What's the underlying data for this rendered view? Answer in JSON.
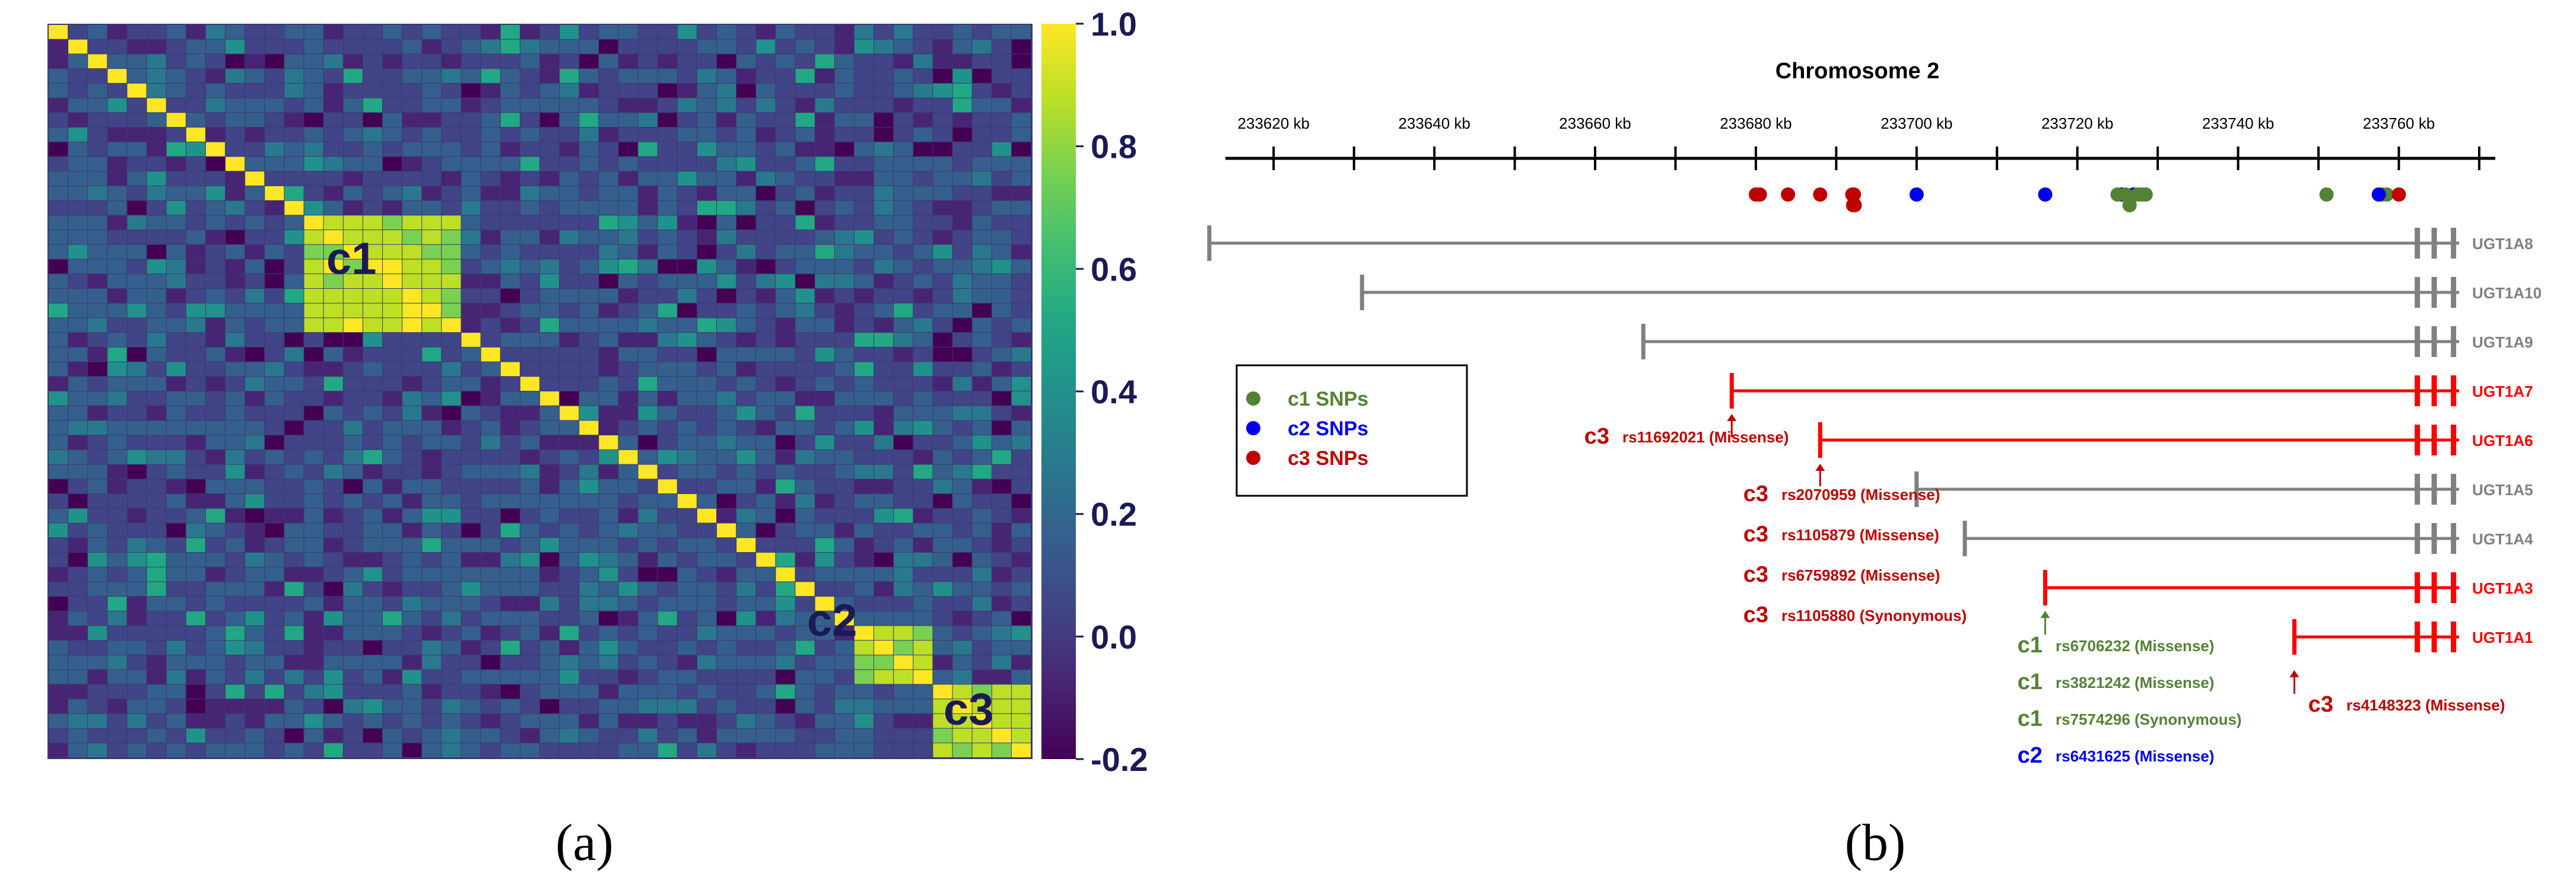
{
  "panel_a": {
    "label": "(a)",
    "cluster_labels": [
      "c1",
      "c2",
      "c3"
    ],
    "colorbar": {
      "ticks": [
        "1.0",
        "0.8",
        "0.6",
        "0.4",
        "0.2",
        "0.0",
        "-0.2"
      ],
      "min": -0.2,
      "max": 1.0,
      "colors": [
        "#440154",
        "#482475",
        "#414487",
        "#355f8d",
        "#2a788e",
        "#21918c",
        "#22a884",
        "#44bf70",
        "#7ad151",
        "#bddf26",
        "#fde725"
      ]
    },
    "matrix_size": 50,
    "background_r": 0.1,
    "blocks": [
      {
        "cluster": "c1",
        "from": 13,
        "to": 20,
        "r": 0.95
      },
      {
        "cluster": "c2",
        "from": 41,
        "to": 44,
        "r": 0.9
      },
      {
        "cluster": "c3",
        "from": 45,
        "to": 49,
        "r": 0.93
      }
    ]
  },
  "panel_b": {
    "label": "(b)",
    "title": "Chromosome 2",
    "axis": {
      "unit": "kb",
      "ticks": [
        "233620 kb",
        "233640 kb",
        "233660 kb",
        "233680 kb",
        "233700 kb",
        "233720 kb",
        "233740 kb",
        "233760 kb"
      ],
      "tick_values": [
        233620,
        233640,
        233660,
        233680,
        233700,
        233720,
        233740,
        233760
      ],
      "range": [
        233614,
        233772
      ]
    },
    "legend": [
      {
        "label": "c1 SNPs",
        "color": "#548235"
      },
      {
        "label": "c2 SNPs",
        "color": "#0000ee"
      },
      {
        "label": "c3 SNPs",
        "color": "#c00000"
      }
    ],
    "genes": [
      {
        "name": "UGT1A8",
        "start": 233612,
        "highlight": false
      },
      {
        "name": "UGT1A10",
        "start": 233631,
        "highlight": false
      },
      {
        "name": "UGT1A9",
        "start": 233666,
        "highlight": false
      },
      {
        "name": "UGT1A7",
        "start": 233677,
        "highlight": true
      },
      {
        "name": "UGT1A6",
        "start": 233688,
        "highlight": true
      },
      {
        "name": "UGT1A5",
        "start": 233700,
        "highlight": false
      },
      {
        "name": "UGT1A4",
        "start": 233706,
        "highlight": false
      },
      {
        "name": "UGT1A3",
        "start": 233716,
        "highlight": true
      },
      {
        "name": "UGT1A1",
        "start": 233747,
        "highlight": true
      }
    ],
    "snp_groups": [
      {
        "items": [
          {
            "cluster": "c3",
            "id": "rs11692021 (Missense)"
          }
        ]
      },
      {
        "items": [
          {
            "cluster": "c3",
            "id": "rs2070959 (Missense)"
          },
          {
            "cluster": "c3",
            "id": "rs1105879 (Missense)"
          },
          {
            "cluster": "c3",
            "id": "rs6759892 (Missense)"
          },
          {
            "cluster": "c3",
            "id": "rs1105880 (Synonymous)"
          }
        ]
      },
      {
        "items": [
          {
            "cluster": "c1",
            "id": "rs6706232 (Missense)"
          },
          {
            "cluster": "c1",
            "id": "rs3821242 (Missense)"
          },
          {
            "cluster": "c1",
            "id": "rs7574296 (Synonymous)"
          },
          {
            "cluster": "c2",
            "id": "rs6431625 (Missense)"
          }
        ]
      },
      {
        "items": [
          {
            "cluster": "c3",
            "id": "rs4148323 (Missense)"
          }
        ]
      }
    ],
    "snp_dots": [
      {
        "cluster": "c3",
        "pos": 233680.0
      },
      {
        "cluster": "c3",
        "pos": 233680.5
      },
      {
        "cluster": "c3",
        "pos": 233684.0
      },
      {
        "cluster": "c3",
        "pos": 233688.0
      },
      {
        "cluster": "c3",
        "pos": 233692.0
      },
      {
        "cluster": "c3",
        "pos": 233692.2
      },
      {
        "cluster": "c3",
        "pos": 233692.1
      },
      {
        "cluster": "c3",
        "pos": 233692.3
      },
      {
        "cluster": "c2",
        "pos": 233700.0
      },
      {
        "cluster": "c2",
        "pos": 233716.0
      },
      {
        "cluster": "c2",
        "pos": 233725.5
      },
      {
        "cluster": "c2",
        "pos": 233727.0
      },
      {
        "cluster": "c1",
        "pos": 233725.0
      },
      {
        "cluster": "c1",
        "pos": 233726.5
      },
      {
        "cluster": "c1",
        "pos": 233728.0
      },
      {
        "cluster": "c1",
        "pos": 233726.0
      },
      {
        "cluster": "c1",
        "pos": 233727.5
      },
      {
        "cluster": "c1",
        "pos": 233728.5
      },
      {
        "cluster": "c1",
        "pos": 233751.0
      },
      {
        "cluster": "c1",
        "pos": 233758.0
      },
      {
        "cluster": "c1",
        "pos": 233758.5
      },
      {
        "cluster": "c2",
        "pos": 233757.5
      },
      {
        "cluster": "c3",
        "pos": 233760.0
      }
    ]
  }
}
